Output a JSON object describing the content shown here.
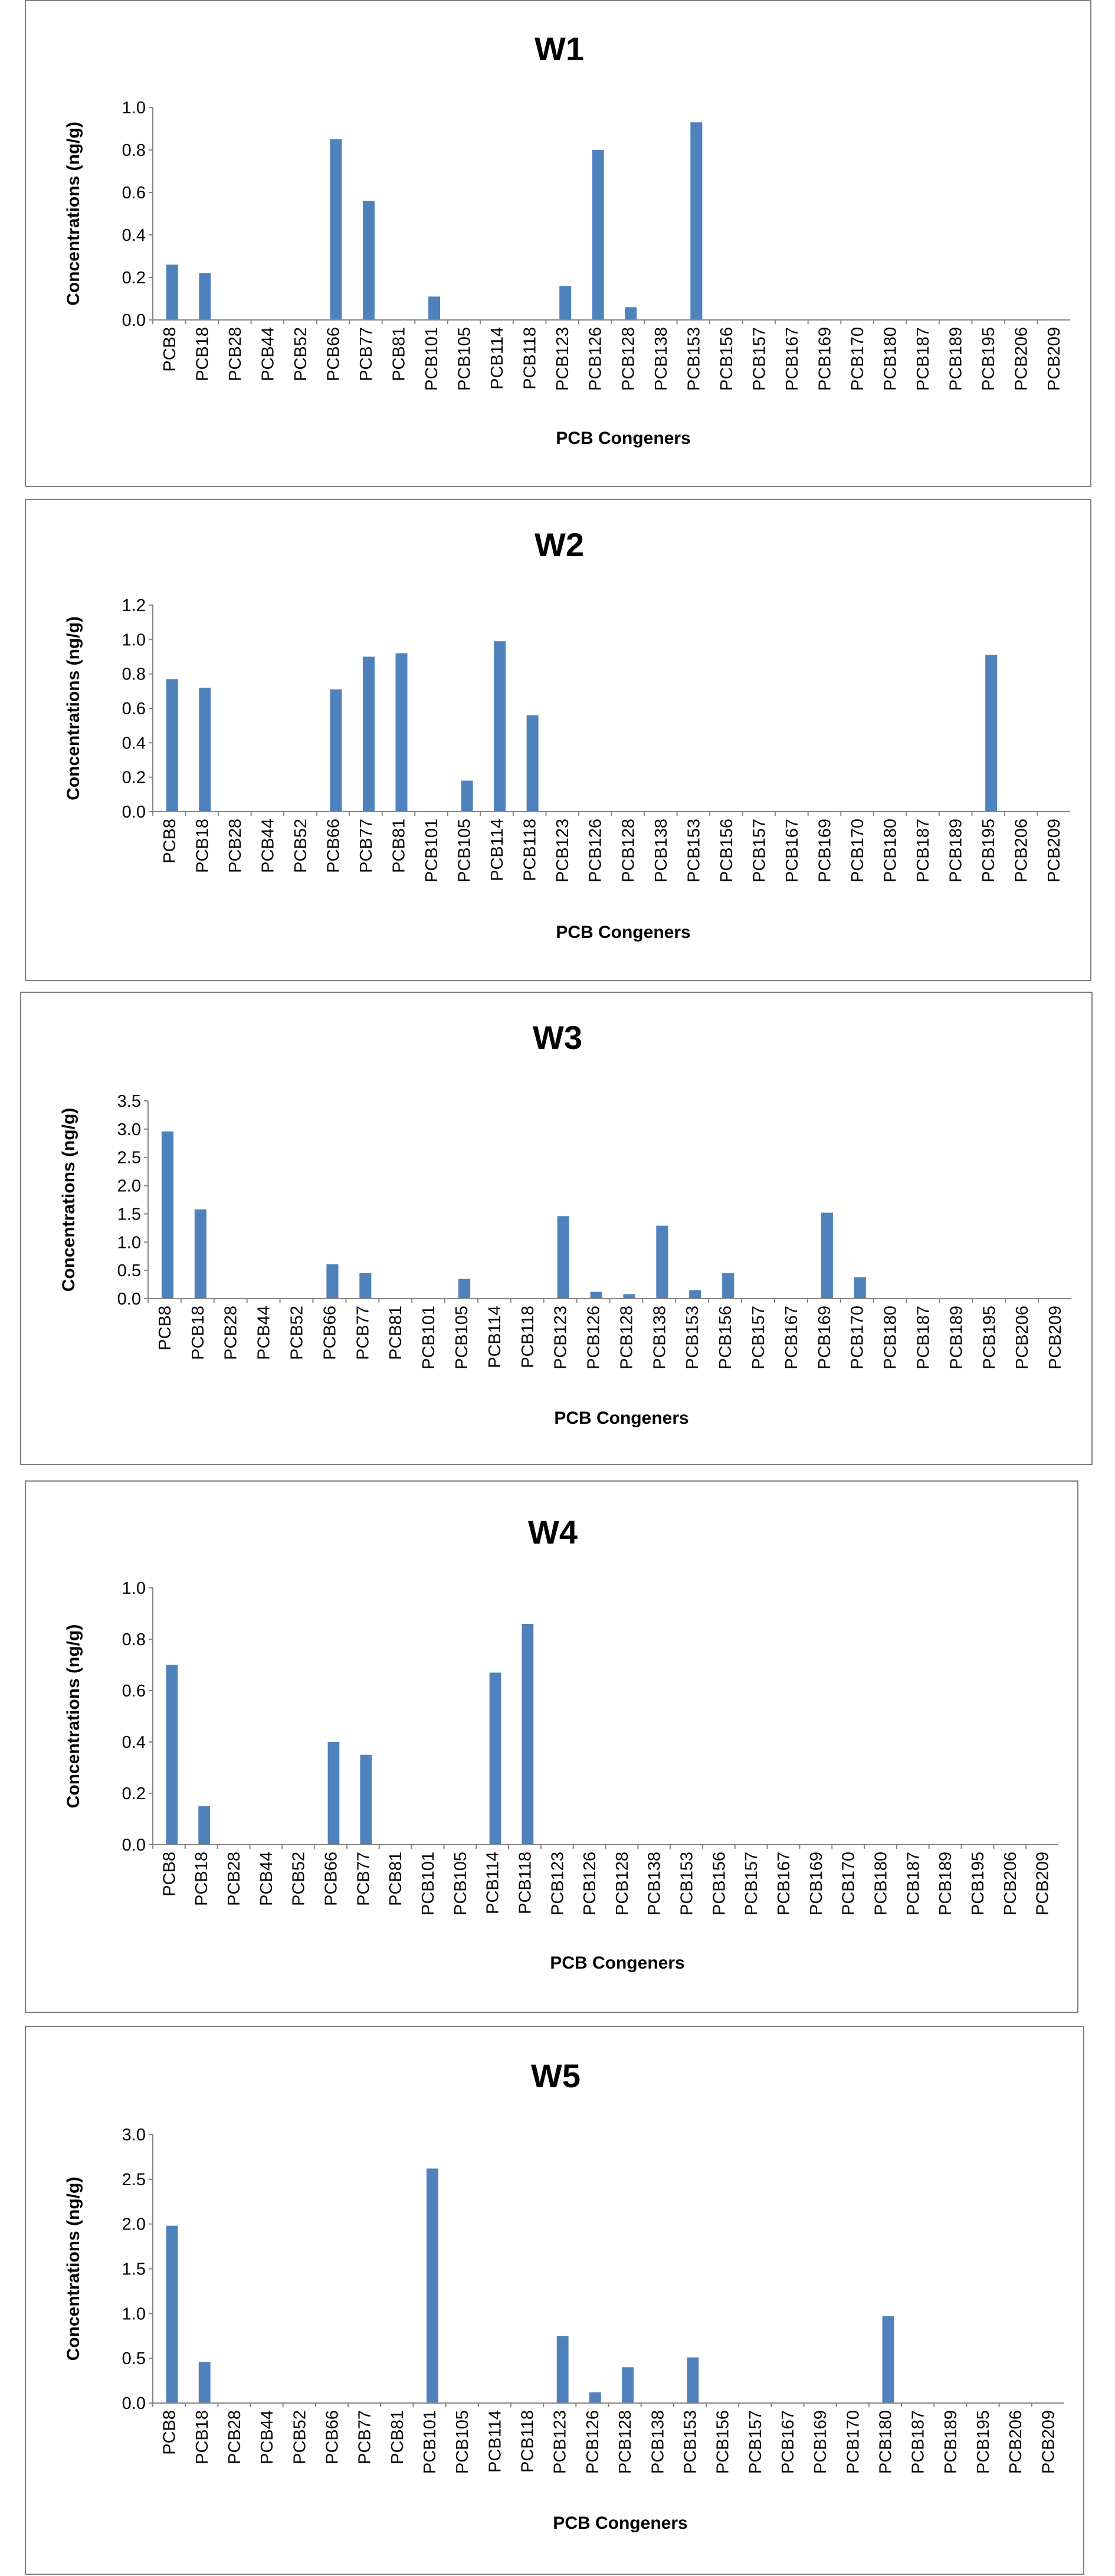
{
  "chart_data": [
    {
      "type": "bar",
      "title": "W1",
      "xlabel": "PCB Congeners",
      "ylabel": "Concentrations (ng/g)",
      "ylim": [
        0,
        1.0
      ],
      "yticks": [
        "0.0",
        "0.2",
        "0.4",
        "0.6",
        "0.8",
        "1.0"
      ],
      "grid": false,
      "color": "#4f81bd",
      "categories": [
        "PCB8",
        "PCB18",
        "PCB28",
        "PCB44",
        "PCB52",
        "PCB66",
        "PCB77",
        "PCB81",
        "PCB101",
        "PCB105",
        "PCB114",
        "PCB118",
        "PCB123",
        "PCB126",
        "PCB128",
        "PCB138",
        "PCB153",
        "PCB156",
        "PCB157",
        "PCB167",
        "PCB169",
        "PCB170",
        "PCB180",
        "PCB187",
        "PCB189",
        "PCB195",
        "PCB206",
        "PCB209"
      ],
      "values": [
        0.26,
        0.22,
        0,
        0,
        0,
        0.85,
        0.56,
        0,
        0.11,
        0,
        0,
        0,
        0.16,
        0.8,
        0.06,
        0,
        0.93,
        0,
        0,
        0,
        0,
        0,
        0,
        0,
        0,
        0,
        0,
        0
      ]
    },
    {
      "type": "bar",
      "title": "W2",
      "xlabel": "PCB Congeners",
      "ylabel": "Concentrations (ng/g)",
      "ylim": [
        0,
        1.2
      ],
      "yticks": [
        "0.0",
        "0.2",
        "0.4",
        "0.6",
        "0.8",
        "1.0",
        "1.2"
      ],
      "grid": false,
      "color": "#4f81bd",
      "categories": [
        "PCB8",
        "PCB18",
        "PCB28",
        "PCB44",
        "PCB52",
        "PCB66",
        "PCB77",
        "PCB81",
        "PCB101",
        "PCB105",
        "PCB114",
        "PCB118",
        "PCB123",
        "PCB126",
        "PCB128",
        "PCB138",
        "PCB153",
        "PCB156",
        "PCB157",
        "PCB167",
        "PCB169",
        "PCB170",
        "PCB180",
        "PCB187",
        "PCB189",
        "PCB195",
        "PCB206",
        "PCB209"
      ],
      "values": [
        0.77,
        0.72,
        0,
        0,
        0,
        0.71,
        0.9,
        0.92,
        0,
        0.18,
        0.99,
        0.56,
        0,
        0,
        0,
        0,
        0,
        0,
        0,
        0,
        0,
        0,
        0,
        0,
        0,
        0.91,
        0,
        0
      ]
    },
    {
      "type": "bar",
      "title": "W3",
      "xlabel": "PCB Congeners",
      "ylabel": "Concentrations (ng/g)",
      "ylim": [
        0,
        3.5
      ],
      "yticks": [
        "0.0",
        "0.5",
        "1.0",
        "1.5",
        "2.0",
        "2.5",
        "3.0",
        "3.5"
      ],
      "grid": false,
      "color": "#4f81bd",
      "categories": [
        "PCB8",
        "PCB18",
        "PCB28",
        "PCB44",
        "PCB52",
        "PCB66",
        "PCB77",
        "PCB81",
        "PCB101",
        "PCB105",
        "PCB114",
        "PCB118",
        "PCB123",
        "PCB126",
        "PCB128",
        "PCB138",
        "PCB153",
        "PCB156",
        "PCB157",
        "PCB167",
        "PCB169",
        "PCB170",
        "PCB180",
        "PCB187",
        "PCB189",
        "PCB195",
        "PCB206",
        "PCB209"
      ],
      "values": [
        2.96,
        1.58,
        0,
        0,
        0,
        0.61,
        0.45,
        0,
        0,
        0.35,
        0,
        0,
        1.46,
        0.12,
        0.08,
        1.29,
        0.15,
        0.45,
        0,
        0,
        1.52,
        0.38,
        0,
        0,
        0,
        0,
        0,
        0
      ]
    },
    {
      "type": "bar",
      "title": "W4",
      "xlabel": "PCB Congeners",
      "ylabel": "Concentrations (ng/g)",
      "ylim": [
        0,
        1.0
      ],
      "yticks": [
        "0.0",
        "0.2",
        "0.4",
        "0.6",
        "0.8",
        "1.0"
      ],
      "grid": false,
      "color": "#4f81bd",
      "categories": [
        "PCB8",
        "PCB18",
        "PCB28",
        "PCB44",
        "PCB52",
        "PCB66",
        "PCB77",
        "PCB81",
        "PCB101",
        "PCB105",
        "PCB114",
        "PCB118",
        "PCB123",
        "PCB126",
        "PCB128",
        "PCB138",
        "PCB153",
        "PCB156",
        "PCB157",
        "PCB167",
        "PCB169",
        "PCB170",
        "PCB180",
        "PCB187",
        "PCB189",
        "PCB195",
        "PCB206",
        "PCB209"
      ],
      "values": [
        0.7,
        0.15,
        0,
        0,
        0,
        0.4,
        0.35,
        0,
        0,
        0,
        0.67,
        0.86,
        0,
        0,
        0,
        0,
        0,
        0,
        0,
        0,
        0,
        0,
        0,
        0,
        0,
        0,
        0,
        0
      ]
    },
    {
      "type": "bar",
      "title": "W5",
      "xlabel": "PCB Congeners",
      "ylabel": "Concentrations (ng/g)",
      "ylim": [
        0,
        3.0
      ],
      "yticks": [
        "0.0",
        "0.5",
        "1.0",
        "1.5",
        "2.0",
        "2.5",
        "3.0"
      ],
      "grid": false,
      "color": "#4f81bd",
      "categories": [
        "PCB8",
        "PCB18",
        "PCB28",
        "PCB44",
        "PCB52",
        "PCB66",
        "PCB77",
        "PCB81",
        "PCB101",
        "PCB105",
        "PCB114",
        "PCB118",
        "PCB123",
        "PCB126",
        "PCB128",
        "PCB138",
        "PCB153",
        "PCB156",
        "PCB157",
        "PCB167",
        "PCB169",
        "PCB170",
        "PCB180",
        "PCB187",
        "PCB189",
        "PCB195",
        "PCB206",
        "PCB209"
      ],
      "values": [
        1.98,
        0.46,
        0,
        0,
        0,
        0,
        0,
        0,
        2.62,
        0,
        0,
        0,
        0.75,
        0.12,
        0.4,
        0,
        0.51,
        0,
        0,
        0,
        0,
        0,
        0.97,
        0,
        0,
        0,
        0,
        0
      ]
    }
  ]
}
